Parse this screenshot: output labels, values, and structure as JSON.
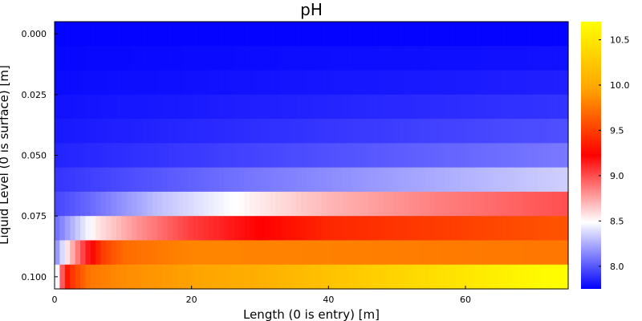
{
  "chart_data": {
    "type": "heatmap",
    "title": "pH",
    "xlabel": "Length (0 is entry) [m]",
    "ylabel": "Liquid Level (0 is surface) [m]",
    "x_range": [
      0,
      75
    ],
    "y_range": [
      -0.005,
      0.105
    ],
    "x_ticks": [
      "0",
      "20",
      "40",
      "60"
    ],
    "y_ticks": [
      "0.000",
      "0.025",
      "0.050",
      "0.075",
      "0.100"
    ],
    "colorbar": {
      "min": 7.75,
      "max": 10.7,
      "ticks": [
        "8.0",
        "8.5",
        "9.0",
        "9.5",
        "10.0",
        "10.5"
      ],
      "colors": [
        "#0000ff",
        "#ffffff",
        "#ff0000",
        "#ffa500",
        "#ffff00"
      ]
    },
    "rows": [
      {
        "depth": 0.0,
        "profile": [
          [
            0,
            7.76
          ],
          [
            75,
            7.76
          ]
        ]
      },
      {
        "depth": 0.01,
        "profile": [
          [
            0,
            7.77
          ],
          [
            75,
            7.8
          ]
        ]
      },
      {
        "depth": 0.02,
        "profile": [
          [
            0,
            7.78
          ],
          [
            75,
            7.84
          ]
        ]
      },
      {
        "depth": 0.03,
        "profile": [
          [
            0,
            7.8
          ],
          [
            75,
            7.9
          ]
        ]
      },
      {
        "depth": 0.04,
        "profile": [
          [
            0,
            7.82
          ],
          [
            75,
            7.98
          ]
        ]
      },
      {
        "depth": 0.05,
        "profile": [
          [
            0,
            7.85
          ],
          [
            75,
            8.1
          ]
        ]
      },
      {
        "depth": 0.06,
        "profile": [
          [
            0,
            7.9
          ],
          [
            30,
            8.1
          ],
          [
            75,
            8.35
          ]
        ]
      },
      {
        "depth": 0.07,
        "profile": [
          [
            0,
            7.95
          ],
          [
            5,
            8.05
          ],
          [
            15,
            8.3
          ],
          [
            30,
            8.55
          ],
          [
            40,
            8.7
          ],
          [
            55,
            8.85
          ],
          [
            75,
            9.0
          ]
        ]
      },
      {
        "depth": 0.08,
        "profile": [
          [
            0,
            8.05
          ],
          [
            3,
            8.3
          ],
          [
            6,
            8.55
          ],
          [
            12,
            8.8
          ],
          [
            20,
            9.05
          ],
          [
            40,
            9.4
          ],
          [
            75,
            9.6
          ]
        ]
      },
      {
        "depth": 0.09,
        "profile": [
          [
            0,
            8.1
          ],
          [
            2,
            8.6
          ],
          [
            4,
            9.0
          ],
          [
            7,
            9.5
          ],
          [
            10,
            9.7
          ],
          [
            20,
            9.82
          ],
          [
            40,
            9.8
          ],
          [
            75,
            9.75
          ]
        ]
      },
      {
        "depth": 0.1,
        "profile": [
          [
            0,
            8.2
          ],
          [
            1,
            8.9
          ],
          [
            2,
            9.4
          ],
          [
            5,
            9.75
          ],
          [
            10,
            9.85
          ],
          [
            20,
            9.95
          ],
          [
            30,
            10.05
          ],
          [
            40,
            10.2
          ],
          [
            50,
            10.35
          ],
          [
            60,
            10.5
          ],
          [
            70,
            10.65
          ],
          [
            75,
            10.7
          ]
        ]
      }
    ]
  }
}
